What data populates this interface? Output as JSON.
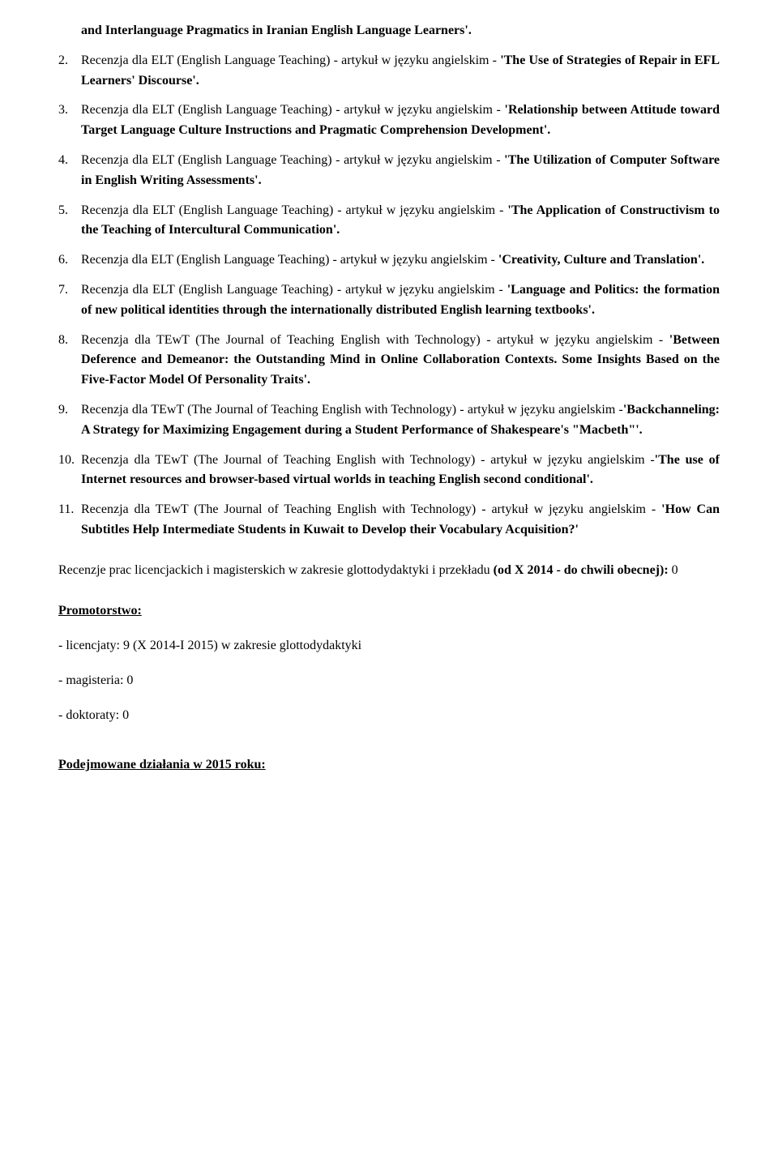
{
  "document": {
    "intro": "and Interlanguage Pragmatics in Iranian English Language Learners'.",
    "items": [
      {
        "prefix": "Recenzja dla ELT (English Language Teaching) - artykuł w języku angielskim - ",
        "title": "'The Use of Strategies of Repair in EFL Learners' Discourse'.",
        "suffix": ""
      },
      {
        "prefix": "Recenzja dla ELT (English Language Teaching) - artykuł w języku angielskim - ",
        "title": "'Relationship between Attitude toward Target Language Culture Instructions and Pragmatic Comprehension Development'.",
        "suffix": ""
      },
      {
        "prefix": "Recenzja dla ELT (English Language Teaching) - artykuł w języku angielskim - ",
        "title": "'The Utilization of Computer Software in English Writing Assessments'.",
        "suffix": ""
      },
      {
        "prefix": "Recenzja dla ELT (English Language Teaching) - artykuł w języku angielskim - ",
        "title": "'The Application of Constructivism to the Teaching of Intercultural Communication'.",
        "suffix": ""
      },
      {
        "prefix": "Recenzja dla ELT (English Language Teaching) - artykuł w języku angielskim - ",
        "title": "'Creativity, Culture and Translation'.",
        "suffix": ""
      },
      {
        "prefix": "Recenzja dla ELT (English Language Teaching) - artykuł w języku angielskim - ",
        "title": "'Language and Politics: the formation of new political identities through the internationally distributed English learning textbooks'.",
        "suffix": ""
      },
      {
        "prefix": "Recenzja dla TEwT (The Journal of Teaching English with Technology) - artykuł w języku angielskim - ",
        "title": "'Between Deference and Demeanor: the Outstanding Mind in Online Collaboration Contexts. Some Insights Based on the Five-Factor Model Of Personality Traits'.",
        "suffix": ""
      },
      {
        "prefix": "Recenzja dla TEwT (The Journal of Teaching English with Technology) - artykuł w języku angielskim -",
        "title": "'Backchanneling: A Strategy for Maximizing Engagement during a Student Performance of Shakespeare's \"Macbeth\"'.",
        "suffix": ""
      },
      {
        "prefix": "Recenzja dla TEwT (The Journal of Teaching English with Technology) - artykuł w języku angielskim -",
        "title": "'The use of Internet resources and browser-based virtual worlds in teaching English second conditional'.",
        "suffix": ""
      },
      {
        "prefix": "Recenzja dla TEwT (The Journal of Teaching English with Technology) - artykuł w języku angielskim - ",
        "title": "'How Can Subtitles Help Intermediate Students in Kuwait to Develop their Vocabulary Acquisition?'",
        "suffix": ""
      }
    ],
    "paragraph": {
      "plain": "Recenzje prac licencjackich i magisterskich w zakresie glottodydaktyki i przekładu ",
      "bold": "(od X 2014 - do chwili obecnej):",
      "tail": " 0"
    },
    "promotor_header": "Promotorstwo:",
    "sub_lines": [
      "- licencjaty: 9 (X 2014-I 2015) w zakresie glottodydaktyki",
      "- magisteria: 0",
      "- doktoraty: 0"
    ],
    "final_header": "Podejmowane działania w 2015 roku:"
  }
}
